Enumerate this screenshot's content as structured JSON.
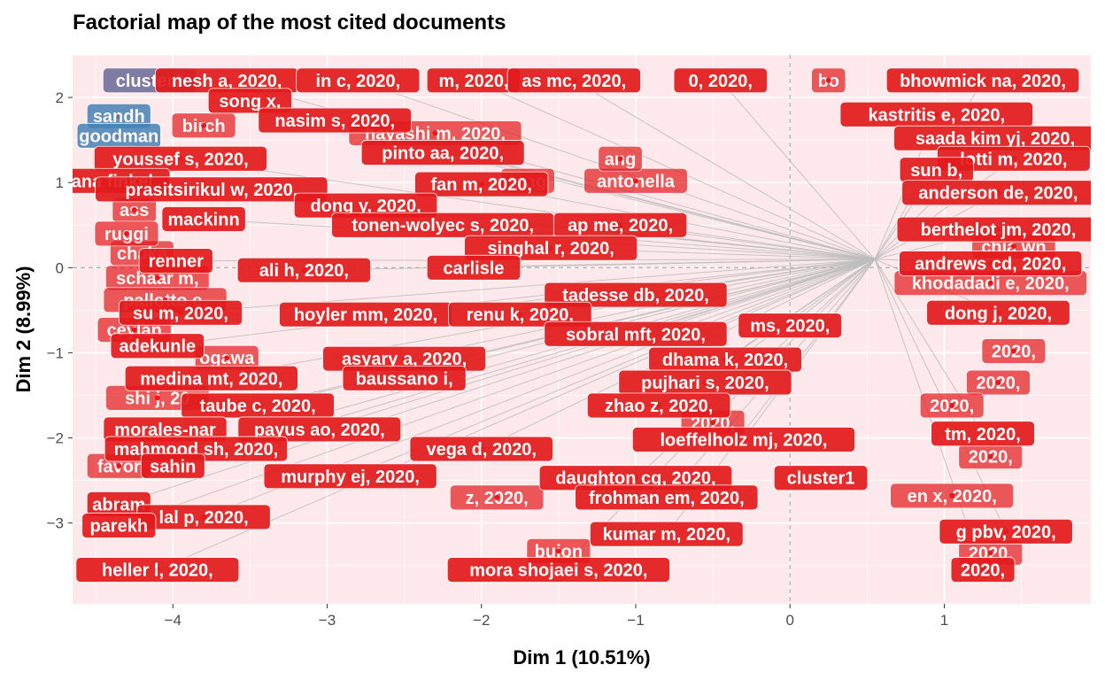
{
  "chart_data": {
    "type": "scatter",
    "title": "Factorial map of the most cited documents",
    "xlabel": "Dim 1 (10.51%)",
    "ylabel": "Dim 2 (8.99%)",
    "xlim": [
      -4.65,
      1.95
    ],
    "ylim": [
      -3.95,
      2.5
    ],
    "x_ticks": [
      -4,
      -3,
      -2,
      -1,
      0,
      1
    ],
    "y_ticks": [
      -3,
      -2,
      -1,
      0,
      1,
      2
    ],
    "grid": true,
    "legend": "none",
    "colors": {
      "panel_bg": "#fde9ec",
      "grid": "#ffffff",
      "cluster1": "#e41a1c",
      "cluster2": "#4682b4",
      "cluster2_dark": "#6a6a98",
      "segments": "#bdbdbd",
      "ref_lines": "#9a9a9a"
    },
    "centroids": [
      {
        "name": "cluster1",
        "x": 0.55,
        "y": 0.1,
        "cluster": 1
      },
      {
        "name": "cluster2",
        "x": -4.2,
        "y": 1.4,
        "cluster": 2
      }
    ],
    "documents": [
      {
        "label": "cluster2",
        "x": -4.15,
        "y": 2.2,
        "cluster": 2
      },
      {
        "label": "nesh a, 2020,",
        "x": -3.65,
        "y": 2.2,
        "cluster": 1
      },
      {
        "label": "in c, 2020,",
        "x": -2.8,
        "y": 2.2,
        "cluster": 1
      },
      {
        "label": "m, 2020,",
        "x": -2.05,
        "y": 2.2,
        "cluster": 1
      },
      {
        "label": "as mc, 2020,",
        "x": -1.4,
        "y": 2.2,
        "cluster": 1
      },
      {
        "label": "0, 2020,",
        "x": -0.45,
        "y": 2.2,
        "cluster": 1
      },
      {
        "label": "bhowmick na, 2020,",
        "x": 1.25,
        "y": 2.2,
        "cluster": 1
      },
      {
        "label": "song x,",
        "x": -3.5,
        "y": 1.96,
        "cluster": 1
      },
      {
        "label": "sandh",
        "x": -4.35,
        "y": 1.78,
        "cluster": 2
      },
      {
        "label": "nasim s, 2020,",
        "x": -2.95,
        "y": 1.73,
        "cluster": 1
      },
      {
        "label": "kastritis e, 2020,",
        "x": 0.95,
        "y": 1.8,
        "cluster": 1
      },
      {
        "label": "goodman",
        "x": -4.35,
        "y": 1.55,
        "cluster": 2
      },
      {
        "label": "saada kim yj, 2020,",
        "x": 1.33,
        "y": 1.52,
        "cluster": 1
      },
      {
        "label": "pinto aa, 2020,",
        "x": -2.25,
        "y": 1.35,
        "cluster": 1
      },
      {
        "label": "youssef s, 2020,",
        "x": -3.95,
        "y": 1.28,
        "cluster": 1
      },
      {
        "label": "lotti m, 2020,",
        "x": 1.45,
        "y": 1.28,
        "cluster": 1
      },
      {
        "label": "sun b,",
        "x": 0.95,
        "y": 1.15,
        "cluster": 1
      },
      {
        "label": "ruana finkel",
        "x": -4.45,
        "y": 1.02,
        "cluster": 1
      },
      {
        "label": "prasitsirikul w, 2020,",
        "x": -3.75,
        "y": 0.92,
        "cluster": 1
      },
      {
        "label": "fan m, 2020,",
        "x": -2.0,
        "y": 0.98,
        "cluster": 1
      },
      {
        "label": "anderson de, 2020,",
        "x": 1.35,
        "y": 0.88,
        "cluster": 1
      },
      {
        "label": "dong y, 2020,",
        "x": -2.75,
        "y": 0.73,
        "cluster": 1
      },
      {
        "label": "mackinn",
        "x": -3.8,
        "y": 0.57,
        "cluster": 1
      },
      {
        "label": "tonen-wolyec s, 2020,",
        "x": -2.25,
        "y": 0.5,
        "cluster": 1
      },
      {
        "label": "ap me, 2020,",
        "x": -1.1,
        "y": 0.5,
        "cluster": 1
      },
      {
        "label": "berthelot jm, 2020,",
        "x": 1.35,
        "y": 0.45,
        "cluster": 1
      },
      {
        "label": "singhal r, 2020,",
        "x": -1.55,
        "y": 0.23,
        "cluster": 1
      },
      {
        "label": "renner",
        "x": -3.98,
        "y": 0.08,
        "cluster": 1
      },
      {
        "label": "ali h, 2020,",
        "x": -3.15,
        "y": -0.03,
        "cluster": 1
      },
      {
        "label": "carlisle",
        "x": -2.05,
        "y": 0.0,
        "cluster": 1
      },
      {
        "label": "andrews cd, 2020,",
        "x": 1.3,
        "y": 0.05,
        "cluster": 1
      },
      {
        "label": "tadesse db, 2020,",
        "x": -1.0,
        "y": -0.32,
        "cluster": 1
      },
      {
        "label": "su m, 2020,",
        "x": -3.95,
        "y": -0.53,
        "cluster": 1
      },
      {
        "label": "hoyler mm, 2020,",
        "x": -2.75,
        "y": -0.55,
        "cluster": 1
      },
      {
        "label": "renu k, 2020,",
        "x": -1.75,
        "y": -0.55,
        "cluster": 1
      },
      {
        "label": "dong j, 2020,",
        "x": 1.35,
        "y": -0.53,
        "cluster": 1
      },
      {
        "label": "ms, 2020,",
        "x": 0.0,
        "y": -0.68,
        "cluster": 1
      },
      {
        "label": "adekunle",
        "x": -4.1,
        "y": -0.92,
        "cluster": 1
      },
      {
        "label": "sobral mft, 2020,",
        "x": -1.0,
        "y": -0.78,
        "cluster": 1
      },
      {
        "label": "asyary a, 2020,",
        "x": -2.5,
        "y": -1.07,
        "cluster": 1
      },
      {
        "label": "dhama k, 2020,",
        "x": -0.42,
        "y": -1.08,
        "cluster": 1
      },
      {
        "label": "medina mt, 2020,",
        "x": -3.75,
        "y": -1.3,
        "cluster": 1
      },
      {
        "label": "baussano i,",
        "x": -2.5,
        "y": -1.3,
        "cluster": 1
      },
      {
        "label": "pujhari s, 2020,",
        "x": -0.55,
        "y": -1.35,
        "cluster": 1
      },
      {
        "label": "zhao z, 2020,",
        "x": -0.85,
        "y": -1.62,
        "cluster": 1
      },
      {
        "label": "taube c, 2020,",
        "x": -3.45,
        "y": -1.62,
        "cluster": 1
      },
      {
        "label": "payus ao, 2020,",
        "x": -3.05,
        "y": -1.9,
        "cluster": 1
      },
      {
        "label": "morales-nar",
        "x": -4.05,
        "y": -1.9,
        "cluster": 1
      },
      {
        "label": "loeffelholz mj, 2020,",
        "x": -0.3,
        "y": -2.02,
        "cluster": 1
      },
      {
        "label": "tm, 2020,",
        "x": 1.25,
        "y": -1.95,
        "cluster": 1
      },
      {
        "label": "mahmood sh, 2020,",
        "x": -3.85,
        "y": -2.13,
        "cluster": 1
      },
      {
        "label": "vega d, 2020,",
        "x": -2.0,
        "y": -2.13,
        "cluster": 1
      },
      {
        "label": "murphy ej, 2020,",
        "x": -2.85,
        "y": -2.45,
        "cluster": 1
      },
      {
        "label": "sahin",
        "x": -4.0,
        "y": -2.33,
        "cluster": 1
      },
      {
        "label": "daughton cg, 2020,",
        "x": -1.0,
        "y": -2.47,
        "cluster": 1
      },
      {
        "label": "cluster1",
        "x": 0.2,
        "y": -2.47,
        "cluster": 1
      },
      {
        "label": "frohman em, 2020,",
        "x": -0.8,
        "y": -2.7,
        "cluster": 1
      },
      {
        "label": "abram",
        "x": -4.35,
        "y": -2.78,
        "cluster": 1
      },
      {
        "label": "lal p, 2020,",
        "x": -3.8,
        "y": -2.93,
        "cluster": 1
      },
      {
        "label": "kumar m, 2020,",
        "x": -0.8,
        "y": -3.13,
        "cluster": 1
      },
      {
        "label": "g pbv, 2020,",
        "x": 1.4,
        "y": -3.1,
        "cluster": 1
      },
      {
        "label": "parekh",
        "x": -4.35,
        "y": -3.03,
        "cluster": 1
      },
      {
        "label": "heller l, 2020,",
        "x": -4.1,
        "y": -3.55,
        "cluster": 1
      },
      {
        "label": "mora shojaei s, 2020,",
        "x": -1.5,
        "y": -3.55,
        "cluster": 1
      },
      {
        "label": "2020,",
        "x": 1.25,
        "y": -3.55,
        "cluster": 1
      }
    ],
    "background_labels": [
      {
        "label": "birch",
        "x": -3.8,
        "y": 1.67
      },
      {
        "label": "hayashi m, 2020,",
        "x": -2.3,
        "y": 1.58
      },
      {
        "label": "tang",
        "x": -1.7,
        "y": 1.02
      },
      {
        "label": "antonella",
        "x": -1.0,
        "y": 1.02
      },
      {
        "label": "ass",
        "x": -4.25,
        "y": 0.68
      },
      {
        "label": "chaka",
        "x": -4.2,
        "y": 0.17
      },
      {
        "label": "ruggi",
        "x": -4.3,
        "y": 0.4
      },
      {
        "label": "schaar m,",
        "x": -4.1,
        "y": -0.12
      },
      {
        "label": "pallotto c,",
        "x": -4.05,
        "y": -0.38
      },
      {
        "label": "ceylan",
        "x": -4.25,
        "y": -0.73
      },
      {
        "label": "ogawa",
        "x": -3.65,
        "y": -1.06
      },
      {
        "label": "shi j, 20",
        "x": -4.1,
        "y": -1.53
      },
      {
        "label": "favor",
        "x": -4.35,
        "y": -2.33
      },
      {
        "label": "chia wn",
        "x": 1.45,
        "y": 0.25
      },
      {
        "label": "khodadadi e, 2020,",
        "x": 1.3,
        "y": -0.18
      },
      {
        "label": "2020,",
        "x": 1.45,
        "y": -0.98
      },
      {
        "label": "2020,",
        "x": 1.35,
        "y": -1.35
      },
      {
        "label": "2020,",
        "x": 1.05,
        "y": -1.62
      },
      {
        "label": "2020,",
        "x": 1.3,
        "y": -2.22
      },
      {
        "label": "en x, 2020,",
        "x": 1.05,
        "y": -2.68
      },
      {
        "label": "2020,",
        "x": 1.3,
        "y": -3.35
      },
      {
        "label": "buion",
        "x": -1.5,
        "y": -3.33
      },
      {
        "label": "z, 2020,",
        "x": -1.9,
        "y": -2.7
      },
      {
        "label": "2020,",
        "x": -0.5,
        "y": -1.82
      },
      {
        "label": "ang",
        "x": -1.1,
        "y": 1.28
      },
      {
        "label": "bo",
        "x": 0.25,
        "y": 2.2
      }
    ]
  }
}
